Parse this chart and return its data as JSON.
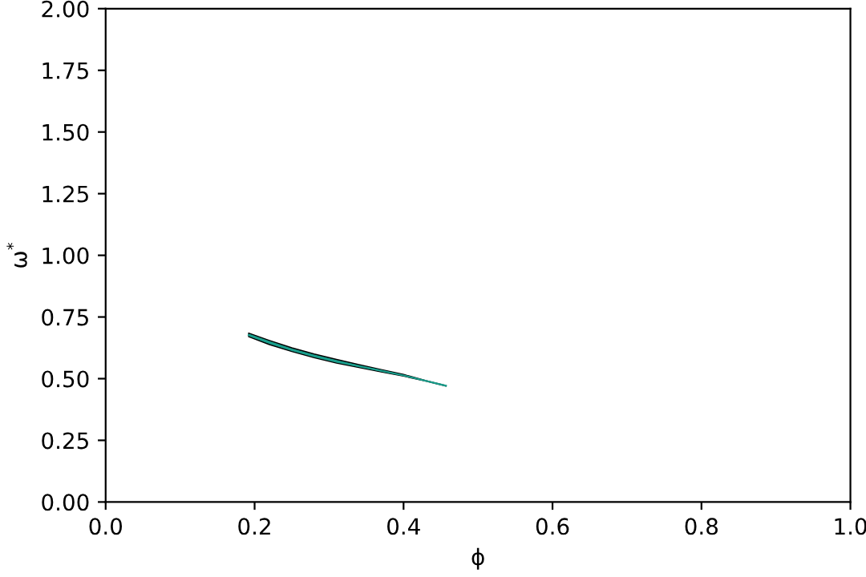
{
  "chart_data": {
    "type": "line",
    "xlabel": "ϕ",
    "ylabel": "ω$^{*}$",
    "xlim": [
      0.0,
      1.0
    ],
    "xticks": [
      {
        "value": 0,
        "label": "0.0"
      },
      0.2,
      0.4,
      0.6,
      0.8,
      {
        "value": 1,
        "label": "1.0"
      }
    ],
    "ylim": [
      0.0,
      2.0
    ],
    "yticks": [
      {
        "value": 0,
        "label": "0.00"
      },
      0.25,
      {
        "value": 0.5,
        "label": "0.50"
      },
      0.75,
      {
        "value": 1,
        "label": "1.00"
      },
      1.25,
      {
        "value": 1.5,
        "label": "1.50"
      },
      1.75,
      {
        "value": 2,
        "label": "2.00"
      }
    ],
    "grid": false,
    "legend": false,
    "series": [
      {
        "color": "#1a9e8c",
        "x": [
          0.192,
          0.22,
          0.25,
          0.28,
          0.31,
          0.34,
          0.37,
          0.4,
          0.43,
          0.457
        ],
        "values": [
          0.677,
          0.646,
          0.617,
          0.592,
          0.57,
          0.551,
          0.532,
          0.513,
          0.491,
          0.471
        ],
        "lower": [
          0.67,
          0.638,
          0.61,
          0.585,
          0.563,
          0.545,
          0.527,
          0.51,
          0.49,
          0.47
        ],
        "upper": [
          0.685,
          0.655,
          0.625,
          0.6,
          0.578,
          0.557,
          0.537,
          0.517,
          0.492,
          0.472
        ]
      }
    ]
  }
}
